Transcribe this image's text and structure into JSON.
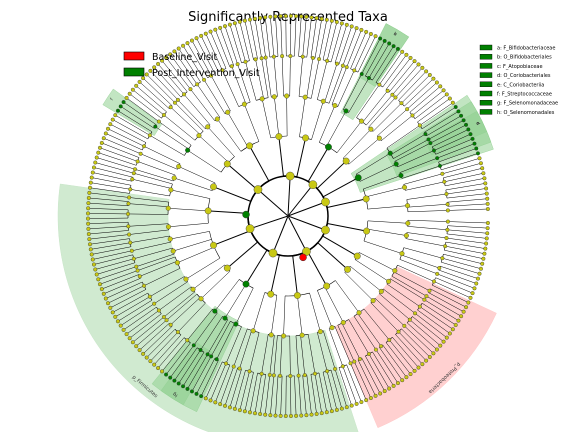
{
  "chart_data": {
    "type": "cladogram",
    "title": "Significantly Represented Taxa",
    "colors": {
      "baseline": "#ff0000",
      "post": "#008000",
      "neutral_node": "#c8c814",
      "baseline_shade": "#ffc8c8",
      "post_shade": "#c8e6c8",
      "post_shade_dark": "#8fcf8f"
    },
    "legend": {
      "placement": "top-left",
      "entries": [
        {
          "label": "Baseline_Visit",
          "color": "#ff0000"
        },
        {
          "label": "Post_Intervention_Visit",
          "color": "#008000"
        }
      ]
    },
    "clade_key": {
      "placement": "top-right",
      "entries": [
        {
          "label": "a: F_Bifidobacteriaceae",
          "letter": "a",
          "group": "Post_Intervention_Visit"
        },
        {
          "label": "b: O_Bifidobacteriales",
          "letter": "b",
          "group": "Post_Intervention_Visit"
        },
        {
          "label": "c: F_Atopobiaceae",
          "letter": "c",
          "group": "Post_Intervention_Visit"
        },
        {
          "label": "d: O_Coriobacteriales",
          "letter": "d",
          "group": "Post_Intervention_Visit"
        },
        {
          "label": "e: C_Coriobacteriia",
          "letter": "e",
          "group": "Post_Intervention_Visit"
        },
        {
          "label": "f: F_Streptococcaceae",
          "letter": "f",
          "group": "Post_Intervention_Visit"
        },
        {
          "label": "g: F_Selenomonadaceae",
          "letter": "g",
          "group": "Post_Intervention_Visit"
        },
        {
          "label": "h: O_Selenomonadales",
          "letter": "h",
          "group": "Post_Intervention_Visit"
        }
      ]
    },
    "phyla": [
      {
        "label": "p_Firmicutes",
        "group": "Post_Intervention_Visit",
        "start_deg": 172,
        "end_deg": 288
      },
      {
        "label": "p_Proteobacteria",
        "group": "Baseline_Visit",
        "start_deg": 293,
        "end_deg": 335
      }
    ],
    "clades": [
      {
        "letter": "a",
        "start_deg": 56,
        "end_deg": 63,
        "depth": 3
      },
      {
        "letter": "b",
        "start_deg": 56,
        "end_deg": 63,
        "depth": 2
      },
      {
        "letter": "c",
        "start_deg": 23,
        "end_deg": 29,
        "depth": 3
      },
      {
        "letter": "d",
        "start_deg": 20,
        "end_deg": 32,
        "depth": 2
      },
      {
        "letter": "e",
        "start_deg": 18,
        "end_deg": 34,
        "depth": 1
      },
      {
        "letter": "f",
        "start_deg": 144,
        "end_deg": 149,
        "depth": 3
      },
      {
        "letter": "g",
        "start_deg": 234,
        "end_deg": 241,
        "depth": 3
      },
      {
        "letter": "h",
        "start_deg": 231,
        "end_deg": 245,
        "depth": 2
      }
    ]
  }
}
